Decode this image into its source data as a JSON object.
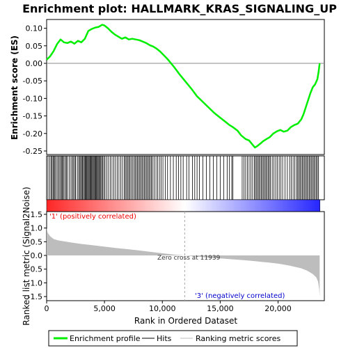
{
  "chart_data": {
    "type": "line",
    "title": "Enrichment plot: HALLMARK_KRAS_SIGNALING_UP",
    "panels": {
      "enrichment": {
        "ylabel": "Enrichment score (ES)",
        "ylim": [
          -0.26,
          0.125
        ],
        "yticks": [
          0.1,
          0.05,
          0.0,
          -0.05,
          -0.1,
          -0.15,
          -0.2,
          -0.25
        ],
        "ytick_labels": [
          "0.10",
          "0.05",
          "0.00",
          "-0.05",
          "-0.10",
          "-0.15",
          "-0.20",
          "-0.25"
        ],
        "series": [
          {
            "name": "Enrichment profile",
            "color": "#00ee00",
            "x": [
              0,
              300,
              600,
              900,
              1200,
              1500,
              1800,
              2100,
              2400,
              2700,
              3000,
              3300,
              3600,
              3900,
              4200,
              4500,
              4800,
              5000,
              5300,
              5600,
              5900,
              6200,
              6500,
              6800,
              7100,
              7400,
              7700,
              8000,
              8300,
              8600,
              8900,
              9200,
              9500,
              9800,
              10100,
              10500,
              11000,
              11500,
              12000,
              12500,
              13000,
              13500,
              14000,
              14500,
              15000,
              15500,
              15800,
              16100,
              16500,
              16800,
              17200,
              17500,
              17800,
              18000,
              18200,
              18500,
              18700,
              19000,
              19300,
              19600,
              19900,
              20200,
              20500,
              20800,
              21100,
              21400,
              21700,
              22000,
              22200,
              22400,
              22600,
              22800,
              23000,
              23200,
              23400,
              23500,
              23600
            ],
            "y": [
              0.01,
              0.02,
              0.035,
              0.055,
              0.068,
              0.06,
              0.058,
              0.062,
              0.056,
              0.064,
              0.06,
              0.07,
              0.092,
              0.098,
              0.102,
              0.104,
              0.11,
              0.108,
              0.1,
              0.09,
              0.082,
              0.076,
              0.07,
              0.074,
              0.068,
              0.07,
              0.068,
              0.066,
              0.062,
              0.058,
              0.052,
              0.048,
              0.042,
              0.034,
              0.024,
              0.01,
              -0.01,
              -0.032,
              -0.052,
              -0.072,
              -0.094,
              -0.11,
              -0.126,
              -0.142,
              -0.155,
              -0.168,
              -0.176,
              -0.182,
              -0.192,
              -0.205,
              -0.216,
              -0.22,
              -0.232,
              -0.24,
              -0.236,
              -0.228,
              -0.222,
              -0.216,
              -0.21,
              -0.2,
              -0.194,
              -0.19,
              -0.195,
              -0.192,
              -0.182,
              -0.176,
              -0.172,
              -0.16,
              -0.145,
              -0.125,
              -0.105,
              -0.085,
              -0.068,
              -0.06,
              -0.045,
              -0.025,
              0.0
            ]
          }
        ]
      },
      "hits": {
        "name": "Hits",
        "positions": [
          120,
          260,
          380,
          470,
          560,
          650,
          720,
          830,
          950,
          1050,
          1150,
          1260,
          1330,
          1400,
          1500,
          1620,
          1700,
          1800,
          1950,
          2100,
          2220,
          2300,
          2420,
          2500,
          2650,
          2760,
          2850,
          2940,
          3020,
          3100,
          3180,
          3260,
          3330,
          3400,
          3470,
          3540,
          3610,
          3680,
          3750,
          3820,
          3890,
          3960,
          4030,
          4100,
          4170,
          4240,
          4310,
          4380,
          4450,
          4520,
          4600,
          4680,
          4760,
          4850,
          4950,
          5050,
          5200,
          5350,
          5500,
          5650,
          5800,
          5950,
          6100,
          6250,
          6400,
          6550,
          6700,
          6800,
          6900,
          7000,
          7100,
          7200,
          7300,
          7420,
          7550,
          7650,
          7750,
          7850,
          7950,
          8050,
          8150,
          8250,
          8350,
          8450,
          8550,
          8650,
          8750,
          8850,
          8950,
          9050,
          9150,
          9300,
          9450,
          9600,
          9750,
          9900,
          10050,
          10250,
          10450,
          10700,
          10950,
          11200,
          11400,
          11600,
          11800,
          12100,
          12300,
          12600,
          12800,
          13000,
          13200,
          13500,
          13800,
          14100,
          14400,
          14700,
          15000,
          15300,
          15600,
          15800,
          16000,
          16100,
          16900,
          17050,
          17200,
          17350,
          17500,
          17650,
          17800,
          17950,
          18050,
          18150,
          18250,
          18350,
          18450,
          18550,
          18650,
          18750,
          18850,
          18950,
          19050,
          19150,
          19250,
          19350,
          19500,
          19650,
          19800,
          19950,
          20100,
          20250,
          20400,
          20600,
          20800,
          21000,
          21150,
          21300,
          21450,
          21600,
          21700,
          21800,
          21900,
          22000,
          22100,
          22200,
          22300,
          22400,
          22500,
          22600,
          22700,
          22800,
          22900,
          23000,
          23100,
          23200,
          23300,
          23400,
          23500
        ]
      },
      "metric": {
        "name": "Ranking metric scores",
        "ylabel": "Ranked list metric (Signal2Noise)",
        "ylim": [
          -1.65,
          1.6
        ],
        "yticks": [
          1.5,
          1.0,
          0.5,
          0.0,
          -0.5,
          -1.0,
          -1.5
        ],
        "ytick_labels": [
          "1.5",
          "1.0",
          "0.5",
          "0.0",
          "-0.5",
          "-1.0",
          "-1.5"
        ],
        "x": [
          0,
          100,
          300,
          600,
          1000,
          2000,
          3000,
          4000,
          5000,
          6000,
          7000,
          8000,
          9000,
          10000,
          11000,
          11939,
          13000,
          14000,
          15000,
          16000,
          17000,
          18000,
          19000,
          20000,
          21000,
          22000,
          22500,
          23000,
          23300,
          23450,
          23550,
          23600
        ],
        "values": [
          1.0,
          0.82,
          0.7,
          0.6,
          0.55,
          0.48,
          0.42,
          0.37,
          0.32,
          0.27,
          0.23,
          0.18,
          0.13,
          0.08,
          0.03,
          0.0,
          -0.04,
          -0.08,
          -0.11,
          -0.14,
          -0.17,
          -0.21,
          -0.25,
          -0.3,
          -0.37,
          -0.47,
          -0.55,
          -0.68,
          -0.8,
          -0.95,
          -1.2,
          -1.5
        ],
        "annotations": {
          "positive": "'1' (positively correlated)",
          "negative": "'3' (negatively correlated)",
          "zero_cross": "Zero cross at 11939"
        },
        "zero_cross_rank": 11939
      }
    },
    "xlabel": "Rank in Ordered Dataset",
    "xlim": [
      0,
      24000
    ],
    "xticks": [
      0,
      5000,
      10000,
      15000,
      20000
    ],
    "xtick_labels": [
      "0",
      "5,000",
      "10,000",
      "15,000",
      "20,000"
    ],
    "n_genes": 23600,
    "legend": {
      "placement": "bottom",
      "entries": [
        {
          "label": "Enrichment profile",
          "color": "#00ee00"
        },
        {
          "label": "Hits",
          "color": "#000000"
        },
        {
          "label": "Ranking metric scores",
          "color": "#bdbdbd"
        }
      ]
    },
    "colors": {
      "axis": "#000000",
      "metric_fill": "#bdbdbd",
      "positive_text": "#ee0000",
      "negative_text": "#0000cc",
      "zero_line": "#888888"
    }
  }
}
